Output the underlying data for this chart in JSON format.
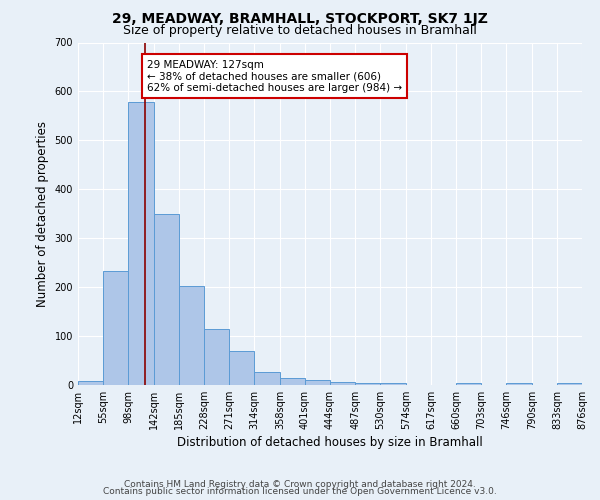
{
  "title": "29, MEADWAY, BRAMHALL, STOCKPORT, SK7 1JZ",
  "subtitle": "Size of property relative to detached houses in Bramhall",
  "xlabel": "Distribution of detached houses by size in Bramhall",
  "ylabel": "Number of detached properties",
  "bin_edges": [
    12,
    55,
    98,
    142,
    185,
    228,
    271,
    314,
    358,
    401,
    444,
    487,
    530,
    574,
    617,
    660,
    703,
    746,
    790,
    833,
    876
  ],
  "bin_counts": [
    8,
    232,
    578,
    350,
    202,
    115,
    70,
    27,
    15,
    10,
    7,
    5,
    5,
    0,
    0,
    5,
    0,
    5,
    0,
    5
  ],
  "bar_color": "#aec6e8",
  "bar_edge_color": "#5b9bd5",
  "vline_color": "#8b0000",
  "vline_x": 127,
  "annotation_text": "29 MEADWAY: 127sqm\n← 38% of detached houses are smaller (606)\n62% of semi-detached houses are larger (984) →",
  "annotation_box_edgecolor": "#cc0000",
  "annotation_box_facecolor": "#ffffff",
  "ylim": [
    0,
    700
  ],
  "yticks": [
    0,
    100,
    200,
    300,
    400,
    500,
    600,
    700
  ],
  "tick_labels": [
    "12sqm",
    "55sqm",
    "98sqm",
    "142sqm",
    "185sqm",
    "228sqm",
    "271sqm",
    "314sqm",
    "358sqm",
    "401sqm",
    "444sqm",
    "487sqm",
    "530sqm",
    "574sqm",
    "617sqm",
    "660sqm",
    "703sqm",
    "746sqm",
    "790sqm",
    "833sqm",
    "876sqm"
  ],
  "footer_line1": "Contains HM Land Registry data © Crown copyright and database right 2024.",
  "footer_line2": "Contains public sector information licensed under the Open Government Licence v3.0.",
  "bg_color": "#e8f0f8",
  "grid_color": "#ffffff",
  "title_fontsize": 10,
  "subtitle_fontsize": 9,
  "label_fontsize": 8.5,
  "tick_fontsize": 7,
  "footer_fontsize": 6.5,
  "annot_fontsize": 7.5
}
